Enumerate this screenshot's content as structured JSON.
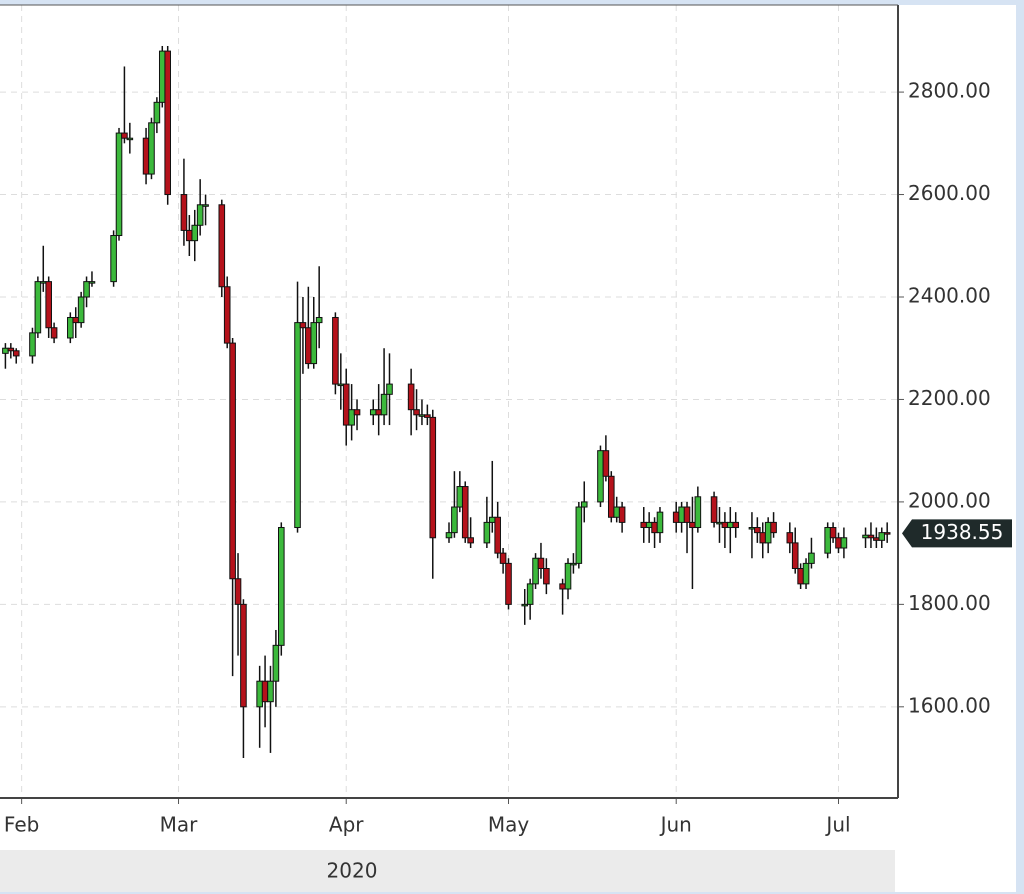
{
  "chart_data": {
    "type": "candlestick",
    "x": [
      "2020-01-29",
      "2020-01-30",
      "2020-01-31",
      "2020-02-03",
      "2020-02-04",
      "2020-02-05",
      "2020-02-06",
      "2020-02-07",
      "2020-02-10",
      "2020-02-11",
      "2020-02-12",
      "2020-02-13",
      "2020-02-14",
      "2020-02-18",
      "2020-02-19",
      "2020-02-20",
      "2020-02-21",
      "2020-02-24",
      "2020-02-25",
      "2020-02-26",
      "2020-02-27",
      "2020-02-28",
      "2020-03-02",
      "2020-03-03",
      "2020-03-04",
      "2020-03-05",
      "2020-03-06",
      "2020-03-09",
      "2020-03-10",
      "2020-03-11",
      "2020-03-12",
      "2020-03-13",
      "2020-03-16",
      "2020-03-17",
      "2020-03-18",
      "2020-03-19",
      "2020-03-20",
      "2020-03-23",
      "2020-03-24",
      "2020-03-25",
      "2020-03-26",
      "2020-03-27",
      "2020-03-30",
      "2020-03-31",
      "2020-04-01",
      "2020-04-02",
      "2020-04-03",
      "2020-04-06",
      "2020-04-07",
      "2020-04-08",
      "2020-04-09",
      "2020-04-13",
      "2020-04-14",
      "2020-04-15",
      "2020-04-16",
      "2020-04-17",
      "2020-04-20",
      "2020-04-21",
      "2020-04-22",
      "2020-04-23",
      "2020-04-24",
      "2020-04-27",
      "2020-04-28",
      "2020-04-29",
      "2020-04-30",
      "2020-05-01",
      "2020-05-04",
      "2020-05-05",
      "2020-05-06",
      "2020-05-07",
      "2020-05-08",
      "2020-05-11",
      "2020-05-12",
      "2020-05-13",
      "2020-05-14",
      "2020-05-15",
      "2020-05-18",
      "2020-05-19",
      "2020-05-20",
      "2020-05-21",
      "2020-05-22",
      "2020-05-26",
      "2020-05-27",
      "2020-05-28",
      "2020-05-29",
      "2020-06-01",
      "2020-06-02",
      "2020-06-03",
      "2020-06-04",
      "2020-06-05",
      "2020-06-08",
      "2020-06-09",
      "2020-06-10",
      "2020-06-11",
      "2020-06-12",
      "2020-06-15",
      "2020-06-16",
      "2020-06-17",
      "2020-06-18",
      "2020-06-19",
      "2020-06-22",
      "2020-06-23",
      "2020-06-24",
      "2020-06-25",
      "2020-06-26",
      "2020-06-29",
      "2020-06-30",
      "2020-07-01",
      "2020-07-02",
      "2020-07-06",
      "2020-07-07",
      "2020-07-08",
      "2020-07-09",
      "2020-07-10"
    ],
    "open": [
      2290,
      2300,
      2295,
      2285,
      2330,
      2430,
      2430,
      2340,
      2320,
      2360,
      2350,
      2400,
      2430,
      2430,
      2520,
      2720,
      2710,
      2710,
      2640,
      2740,
      2780,
      2880,
      2600,
      2530,
      2510,
      2540,
      2580,
      2580,
      2420,
      2310,
      1850,
      1800,
      1600,
      1650,
      1610,
      1650,
      1720,
      1950,
      2350,
      2340,
      2270,
      2350,
      2360,
      2230,
      2230,
      2150,
      2180,
      2170,
      2180,
      2170,
      2210,
      2230,
      2180,
      2170,
      2170,
      2165,
      1930,
      1940,
      1990,
      2030,
      1930,
      1920,
      1960,
      1970,
      1900,
      1880,
      1800,
      1800,
      1840,
      1890,
      1870,
      1840,
      1830,
      1880,
      1880,
      1990,
      2000,
      2100,
      2050,
      1970,
      1990,
      1960,
      1950,
      1960,
      1940,
      1980,
      1960,
      1990,
      1960,
      1950,
      2010,
      1960,
      1960,
      1950,
      1960,
      1950,
      1950,
      1940,
      1920,
      1960,
      1940,
      1920,
      1870,
      1840,
      1880,
      1900,
      1950,
      1930,
      1910,
      1930,
      1935,
      1930,
      1925,
      1940
    ],
    "high": [
      2310,
      2310,
      2300,
      2340,
      2440,
      2500,
      2440,
      2350,
      2370,
      2380,
      2410,
      2440,
      2450,
      2530,
      2730,
      2850,
      2740,
      2730,
      2750,
      2790,
      2890,
      2890,
      2670,
      2560,
      2570,
      2630,
      2600,
      2590,
      2440,
      2320,
      1900,
      1810,
      1680,
      1700,
      1680,
      1750,
      1960,
      2430,
      2400,
      2420,
      2400,
      2460,
      2370,
      2290,
      2260,
      2230,
      2200,
      2200,
      2230,
      2300,
      2290,
      2260,
      2220,
      2200,
      2190,
      2180,
      1960,
      2060,
      2060,
      2040,
      1970,
      2010,
      2080,
      2000,
      1910,
      1890,
      1830,
      1850,
      1900,
      1920,
      1890,
      1850,
      1890,
      1900,
      2000,
      2040,
      2110,
      2130,
      2060,
      2010,
      2000,
      1990,
      1980,
      1970,
      1990,
      2000,
      2000,
      2000,
      2010,
      2030,
      2020,
      1990,
      1980,
      1990,
      1980,
      1980,
      1970,
      1960,
      1970,
      1980,
      1960,
      1950,
      1880,
      1890,
      1930,
      1960,
      1960,
      1940,
      1950,
      1950,
      1960,
      1950,
      1950,
      1960
    ],
    "low": [
      2260,
      2280,
      2270,
      2270,
      2320,
      2410,
      2320,
      2310,
      2310,
      2320,
      2340,
      2380,
      2420,
      2420,
      2510,
      2700,
      2680,
      2620,
      2630,
      2720,
      2770,
      2580,
      2500,
      2480,
      2470,
      2520,
      2540,
      2400,
      2300,
      1660,
      1700,
      1500,
      1520,
      1560,
      1510,
      1600,
      1700,
      1940,
      2250,
      2260,
      2260,
      2300,
      2210,
      2180,
      2110,
      2120,
      2140,
      2150,
      2130,
      2150,
      2150,
      2130,
      2140,
      2150,
      2150,
      1850,
      1920,
      1930,
      1980,
      1920,
      1910,
      1910,
      1940,
      1890,
      1860,
      1790,
      1760,
      1770,
      1830,
      1850,
      1820,
      1780,
      1810,
      1860,
      1870,
      1960,
      1990,
      2040,
      1960,
      1960,
      1940,
      1920,
      1920,
      1910,
      1920,
      1940,
      1940,
      1900,
      1830,
      1940,
      1950,
      1920,
      1910,
      1900,
      1930,
      1890,
      1920,
      1890,
      1900,
      1930,
      1900,
      1860,
      1830,
      1830,
      1870,
      1890,
      1920,
      1900,
      1890,
      1910,
      1910,
      1910,
      1910,
      1920
    ],
    "close": [
      2300,
      2295,
      2285,
      2330,
      2430,
      2430,
      2340,
      2320,
      2360,
      2350,
      2400,
      2430,
      2430,
      2520,
      2720,
      2710,
      2710,
      2640,
      2740,
      2780,
      2880,
      2600,
      2530,
      2510,
      2540,
      2580,
      2580,
      2420,
      2310,
      1850,
      1800,
      1600,
      1650,
      1610,
      1650,
      1720,
      1950,
      2350,
      2340,
      2270,
      2350,
      2360,
      2230,
      2230,
      2150,
      2180,
      2170,
      2180,
      2170,
      2210,
      2230,
      2180,
      2170,
      2170,
      2165,
      1930,
      1940,
      1990,
      2030,
      1930,
      1920,
      1960,
      1970,
      1900,
      1880,
      1800,
      1800,
      1840,
      1890,
      1870,
      1840,
      1830,
      1880,
      1880,
      1990,
      2000,
      2100,
      2050,
      1970,
      1990,
      1960,
      1950,
      1960,
      1940,
      1980,
      1960,
      1990,
      1960,
      1950,
      2010,
      1960,
      1960,
      1950,
      1960,
      1950,
      1950,
      1940,
      1920,
      1960,
      1940,
      1920,
      1870,
      1840,
      1880,
      1900,
      1950,
      1930,
      1910,
      1930,
      1935,
      1930,
      1925,
      1940,
      1938.55
    ],
    "up_color": "#3cb93c",
    "down_color": "#b5121b",
    "xlim": [
      "2020-01-28",
      "2020-07-12"
    ],
    "xticks": [
      {
        "value": "2020-02-01",
        "label": "Feb"
      },
      {
        "value": "2020-03-01",
        "label": "Mar"
      },
      {
        "value": "2020-04-01",
        "label": "Apr"
      },
      {
        "value": "2020-05-01",
        "label": "May"
      },
      {
        "value": "2020-06-01",
        "label": "Jun"
      },
      {
        "value": "2020-07-01",
        "label": "Jul"
      }
    ],
    "year_label": "2020",
    "ylim": [
      1422,
      2970
    ],
    "yticks": [
      {
        "value": 1600,
        "label": "1600.00"
      },
      {
        "value": 1800,
        "label": "1800.00"
      },
      {
        "value": 2000,
        "label": "2000.00"
      },
      {
        "value": 2200,
        "label": "2200.00"
      },
      {
        "value": 2400,
        "label": "2400.00"
      },
      {
        "value": 2600,
        "label": "2600.00"
      },
      {
        "value": 2800,
        "label": "2800.00"
      }
    ],
    "grid": true
  }
}
